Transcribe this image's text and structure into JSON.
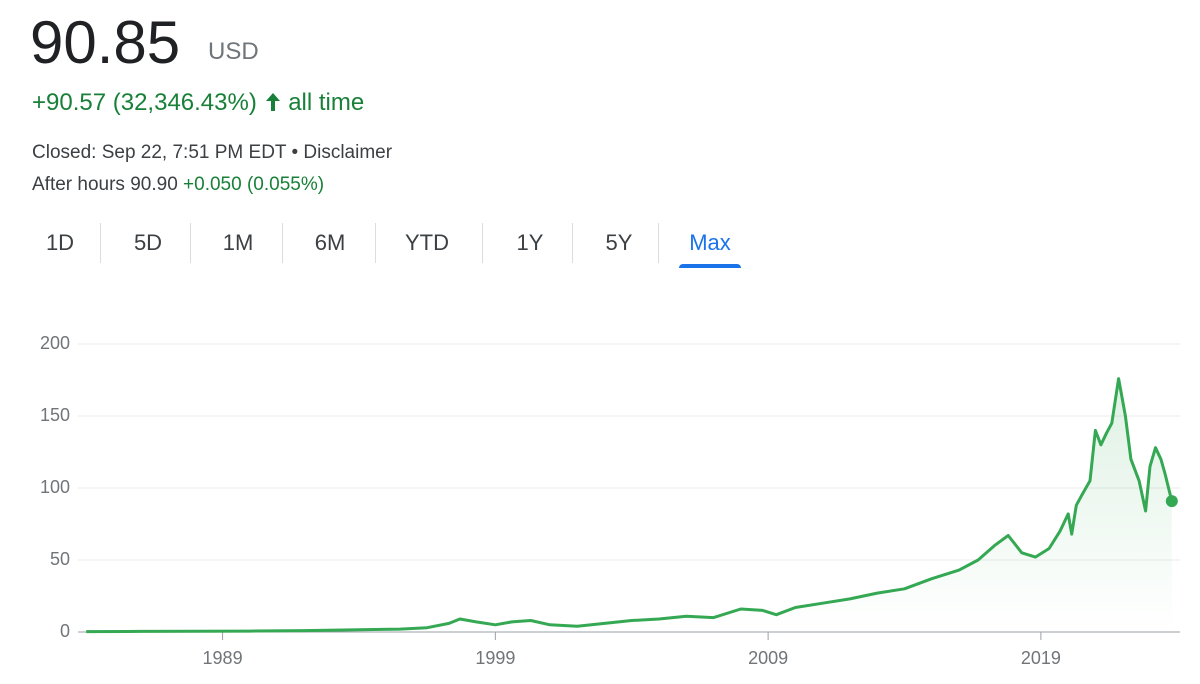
{
  "header": {
    "price": "90.85",
    "currency": "USD",
    "change": "+90.57 (32,346.43%)",
    "change_period": "all time",
    "status": "Closed: Sep 22, 7:51 PM EDT",
    "bullet": "•",
    "disclaimer": "Disclaimer",
    "after_hours": "After hours 90.90",
    "after_hours_change": "+0.050 (0.055%)"
  },
  "tabs": {
    "items": [
      "1D",
      "5D",
      "1M",
      "6M",
      "YTD",
      "1Y",
      "5Y",
      "Max"
    ],
    "selected": 7
  },
  "chart_data": {
    "type": "line",
    "x": [
      1984.0,
      1986.0,
      1988.0,
      1990.0,
      1992.0,
      1994.0,
      1995.5,
      1996.5,
      1997.3,
      1997.7,
      1998.3,
      1999.0,
      1999.6,
      2000.3,
      2001.0,
      2002.0,
      2003.0,
      2004.0,
      2005.0,
      2006.0,
      2007.0,
      2008.0,
      2008.8,
      2009.3,
      2010.0,
      2011.0,
      2012.0,
      2013.0,
      2014.0,
      2015.0,
      2016.0,
      2016.7,
      2017.3,
      2017.8,
      2018.3,
      2018.8,
      2019.3,
      2019.7,
      2020.0,
      2020.13,
      2020.3,
      2020.5,
      2020.8,
      2021.0,
      2021.2,
      2021.4,
      2021.6,
      2021.85,
      2022.1,
      2022.3,
      2022.6,
      2022.84,
      2023.0,
      2023.2,
      2023.4,
      2023.55,
      2023.8
    ],
    "series": [
      {
        "color": "#34a853",
        "values": [
          0.3,
          0.4,
          0.5,
          0.6,
          1,
          1.5,
          2,
          3,
          6,
          9,
          7,
          5,
          7,
          8,
          5,
          4,
          6,
          8,
          9,
          11,
          10,
          16,
          15,
          12,
          17,
          20,
          23,
          27,
          30,
          37,
          43,
          50,
          60,
          67,
          55,
          52,
          58,
          70,
          82,
          68,
          88,
          95,
          105,
          140,
          130,
          138,
          145,
          176,
          150,
          120,
          105,
          84,
          115,
          128,
          120,
          110,
          90.85
        ]
      }
    ],
    "xlim": [
      1983.7,
      2024.1
    ],
    "xticks": [
      1989,
      1999,
      2009,
      2019
    ],
    "ylim": [
      0,
      200
    ],
    "yticks": [
      0,
      50,
      100,
      150,
      200
    ],
    "grid": true,
    "area": true
  }
}
